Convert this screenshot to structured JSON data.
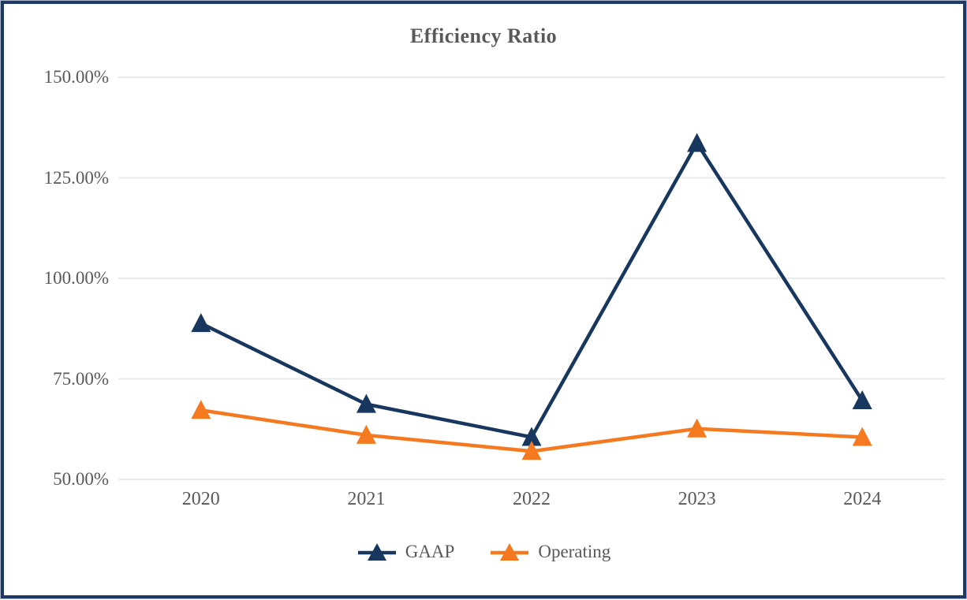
{
  "frame": {
    "border_color": "#1f3864",
    "background": "#ffffff"
  },
  "chart_data": {
    "type": "line",
    "title": "Efficiency Ratio",
    "title_color": "#595959",
    "text_color": "#595959",
    "categories": [
      "2020",
      "2021",
      "2022",
      "2023",
      "2024"
    ],
    "series": [
      {
        "name": "GAAP",
        "color": "#17375e",
        "marker": "triangle",
        "values": [
          88.8,
          68.7,
          60.5,
          133.6,
          69.6
        ]
      },
      {
        "name": "Operating",
        "color": "#f4791f",
        "marker": "triangle",
        "values": [
          67.2,
          61.0,
          57.0,
          62.6,
          60.5
        ]
      }
    ],
    "y_axis": {
      "min": 50,
      "max": 150,
      "tick_step": 25,
      "tick_labels": [
        "50.00%",
        "75.00%",
        "100.00%",
        "125.00%",
        "150.00%"
      ],
      "format": "percent"
    },
    "x_axis": {
      "label": ""
    },
    "grid": {
      "show_horizontal": true,
      "color": "#e7e7e7"
    },
    "legend": {
      "position": "bottom",
      "entries": [
        "GAAP",
        "Operating"
      ]
    }
  }
}
